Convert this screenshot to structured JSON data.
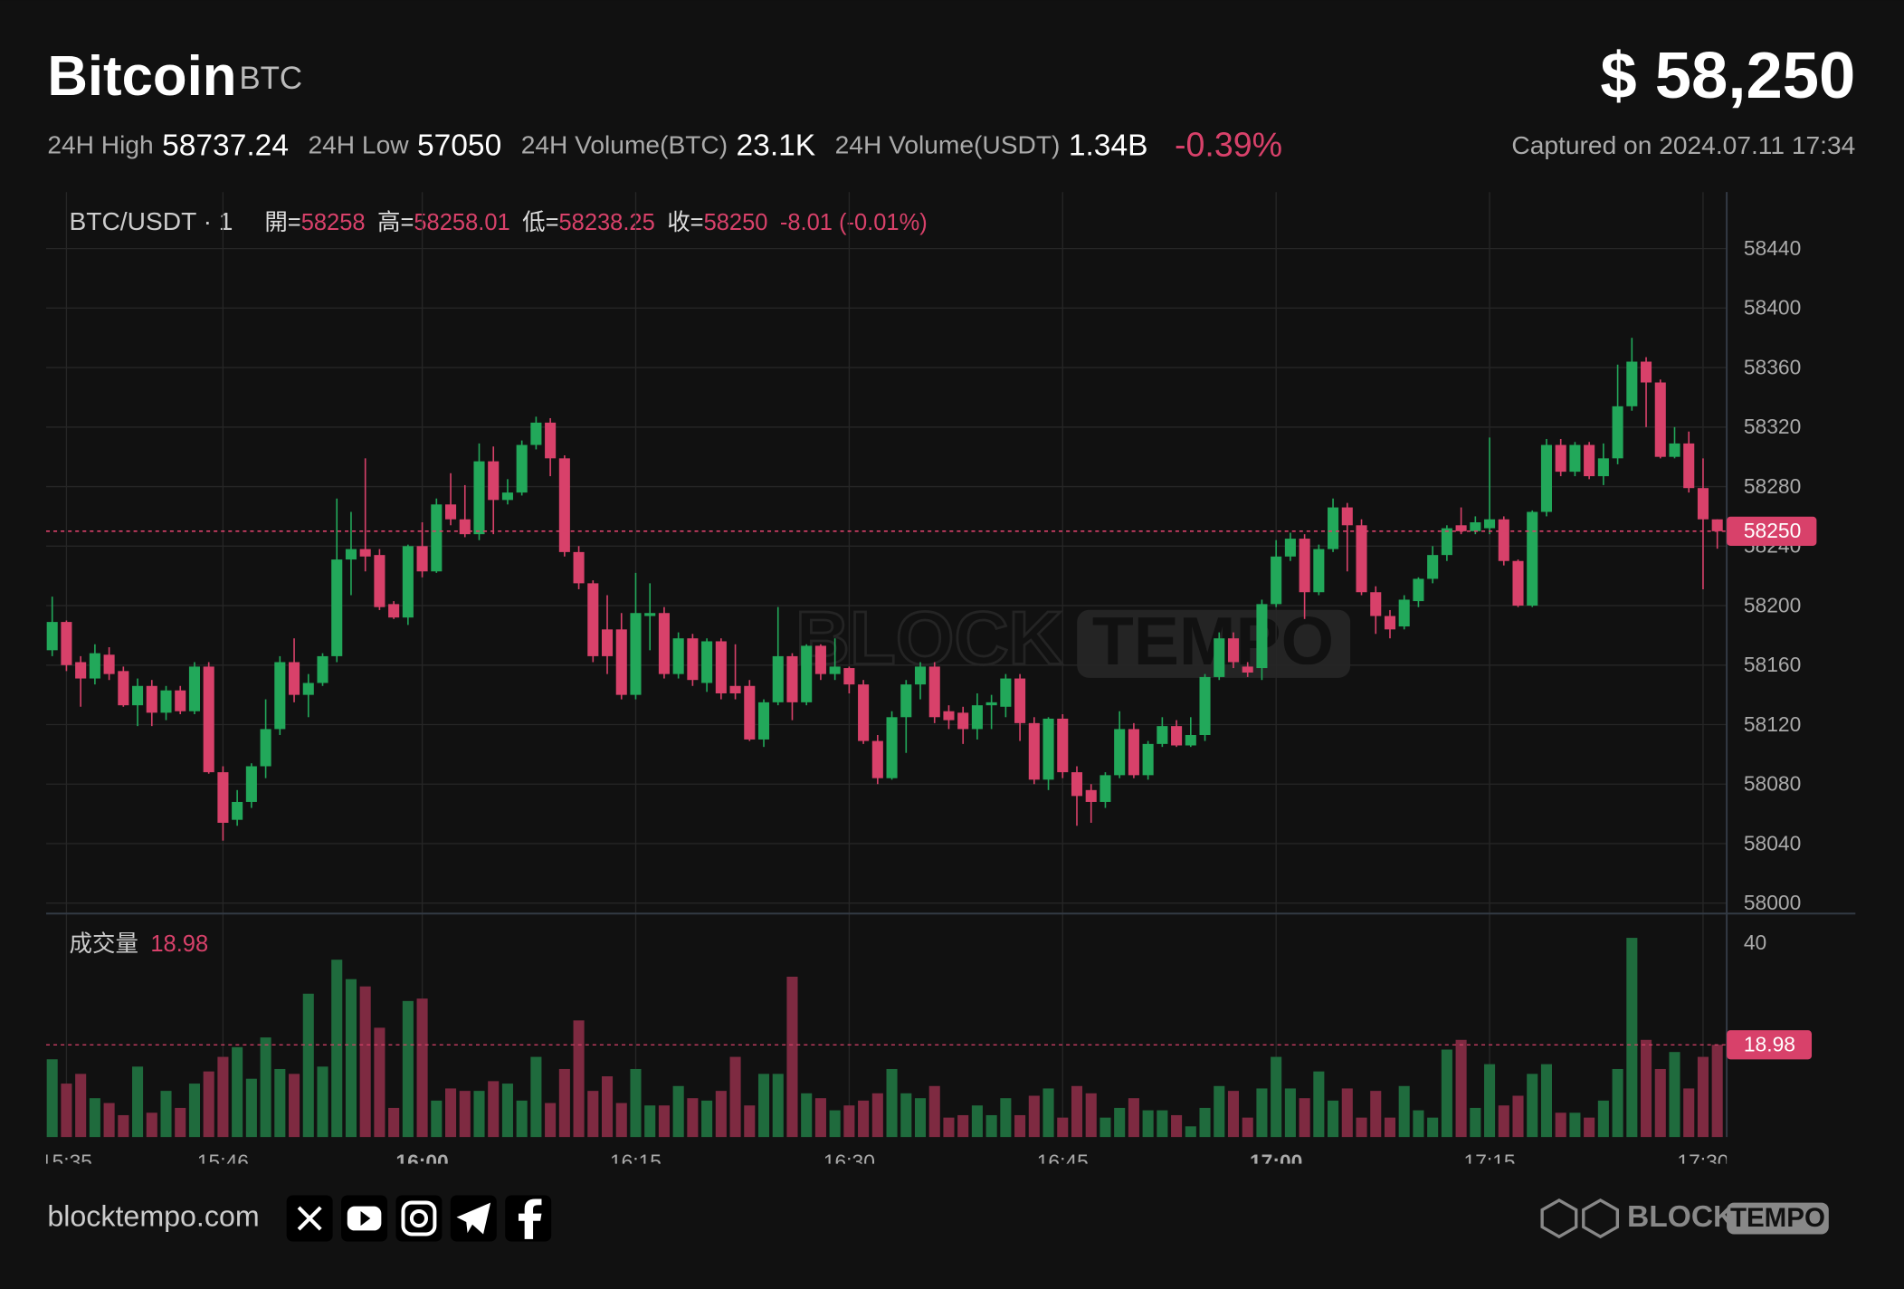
{
  "header": {
    "title": "Bitcoin",
    "symbol": "BTC",
    "price": "$ 58,250",
    "stats": [
      {
        "label": "24H High",
        "value": "58737.24"
      },
      {
        "label": "24H Low",
        "value": "57050"
      },
      {
        "label": "24H Volume(BTC)",
        "value": "23.1K"
      },
      {
        "label": "24H Volume(USDT)",
        "value": "1.34B"
      }
    ],
    "change": "-0.39%",
    "captured": "Captured on 2024.07.11 17:34"
  },
  "chart_data": {
    "type": "candlestick",
    "title": "BTC/USDT · 1",
    "legend": {
      "labels": [
        "開=",
        "高=",
        "低=",
        "收="
      ],
      "change": "-8.01 (-0.01%)"
    },
    "categories": [
      null,
      "15:35",
      null,
      null,
      null,
      null,
      null,
      null,
      null,
      null,
      null,
      null,
      "15:46",
      null,
      null,
      null,
      null,
      null,
      null,
      null,
      null,
      null,
      null,
      null,
      null,
      null,
      "16:00",
      null,
      null,
      null,
      null,
      null,
      null,
      null,
      null,
      null,
      null,
      null,
      null,
      null,
      null,
      "16:15",
      null,
      null,
      null,
      null,
      null,
      null,
      null,
      null,
      null,
      null,
      null,
      null,
      null,
      null,
      "16:30",
      null,
      null,
      null,
      null,
      null,
      null,
      null,
      null,
      null,
      null,
      null,
      null,
      null,
      null,
      "16:45",
      null,
      null,
      null,
      null,
      null,
      null,
      null,
      null,
      null,
      null,
      null,
      null,
      null,
      null,
      "17:00",
      null,
      null,
      null,
      null,
      null,
      null,
      null,
      null,
      null,
      null,
      null,
      null,
      null,
      null,
      "17:15",
      null,
      null,
      null,
      null,
      null,
      null,
      null,
      null,
      null,
      null,
      null,
      null,
      null,
      null,
      "17:30",
      null
    ],
    "open": [
      58170,
      58189,
      58162,
      58151,
      58167,
      58156,
      58133,
      58146,
      58128,
      58143,
      58129,
      58159,
      58088,
      58056,
      58068,
      58092,
      58117,
      58162,
      58140,
      58148,
      58166,
      58231,
      58238,
      58234,
      58201,
      58192,
      58240,
      58223,
      58268,
      58258,
      58248,
      58297,
      58271,
      58276,
      58308,
      58323,
      58299,
      58236,
      58215,
      58184,
      58184,
      58140,
      58193,
      58195,
      58154,
      58178,
      58148,
      58176,
      58146,
      58146,
      58110,
      58135,
      58166,
      58135,
      58173,
      58154,
      58158,
      58147,
      58109,
      58084,
      58125,
      58147,
      58159,
      58129,
      58128,
      58117,
      58133,
      58132,
      58151,
      58121,
      58083,
      58124,
      58088,
      58076,
      58068,
      58086,
      58117,
      58086,
      58107,
      58119,
      58106,
      58113,
      58152,
      58178,
      58159,
      58158,
      58201,
      58233,
      58245,
      58209,
      58238,
      58266,
      58254,
      58209,
      58193,
      58186,
      58203,
      58218,
      58234,
      58254,
      58250,
      58252,
      58258,
      58230,
      58200,
      58263,
      58308,
      58290,
      58308,
      58287,
      58299,
      58334,
      58364,
      58350,
      58300,
      58309,
      58279,
      58258
    ],
    "high": [
      58206,
      58190,
      58166,
      58174,
      58172,
      58159,
      58151,
      58150,
      58146,
      58146,
      58162,
      58162,
      58092,
      58076,
      58094,
      58137,
      58166,
      58178,
      58154,
      58168,
      58272,
      58263,
      58299,
      58238,
      58203,
      58241,
      58256,
      58272,
      58289,
      58281,
      58309,
      58307,
      58285,
      58311,
      58327,
      58326,
      58301,
      58240,
      58217,
      58207,
      58195,
      58222,
      58215,
      58199,
      58182,
      58181,
      58178,
      58178,
      58174,
      58150,
      58137,
      58199,
      58168,
      58174,
      58174,
      58178,
      58159,
      58150,
      58113,
      58129,
      58150,
      58162,
      58162,
      58133,
      58132,
      58141,
      58140,
      58154,
      58154,
      58125,
      58125,
      58127,
      58092,
      58080,
      58088,
      58129,
      58121,
      58109,
      58125,
      58123,
      58125,
      58154,
      58182,
      58182,
      58162,
      58204,
      58244,
      58249,
      58248,
      58241,
      58272,
      58269,
      58258,
      58213,
      58197,
      58207,
      58219,
      58240,
      58254,
      58266,
      58260,
      58313,
      58260,
      58231,
      58264,
      58312,
      58312,
      58310,
      58310,
      58309,
      58362,
      58380,
      58367,
      58352,
      58320,
      58317,
      58299,
      58258.01
    ],
    "low": [
      58166,
      58156,
      58132,
      58147,
      58150,
      58132,
      58119,
      58119,
      58123,
      58127,
      58127,
      58087,
      58042,
      58052,
      58064,
      58084,
      58113,
      58135,
      58125,
      58146,
      58162,
      58207,
      58223,
      58197,
      58191,
      58187,
      58219,
      58222,
      58254,
      58246,
      58244,
      58248,
      58268,
      58274,
      58305,
      58287,
      58233,
      58211,
      58162,
      58154,
      58137,
      58137,
      58170,
      58151,
      58151,
      58146,
      58142,
      58137,
      58137,
      58109,
      58105,
      58133,
      58123,
      58133,
      58150,
      58150,
      58141,
      58107,
      58080,
      58083,
      58101,
      58137,
      58121,
      58117,
      58107,
      58110,
      58117,
      58125,
      58109,
      58080,
      58076,
      58084,
      58052,
      58054,
      58064,
      58084,
      58084,
      58083,
      58105,
      58105,
      58105,
      58109,
      58150,
      58158,
      58152,
      58150,
      58199,
      58230,
      58191,
      58207,
      58236,
      58223,
      58207,
      58181,
      58178,
      58184,
      58199,
      58215,
      58230,
      58248,
      58248,
      58248,
      58227,
      58199,
      58199,
      58260,
      58287,
      58287,
      58285,
      58281,
      58295,
      58331,
      58320,
      58299,
      58299,
      58276,
      58211,
      58238.25
    ],
    "close": [
      58189,
      58160,
      58151,
      58168,
      58154,
      58133,
      58146,
      58128,
      58143,
      58129,
      58159,
      58088,
      58054,
      58068,
      58092,
      58117,
      58162,
      58140,
      58148,
      58166,
      58231,
      58238,
      58233,
      58199,
      58192,
      58240,
      58223,
      58268,
      58258,
      58248,
      58297,
      58271,
      58276,
      58308,
      58323,
      58299,
      58236,
      58215,
      58166,
      58166,
      58140,
      58195,
      58195,
      58154,
      58178,
      58150,
      58176,
      58141,
      58141,
      58110,
      58135,
      58166,
      58135,
      58173,
      58154,
      58159,
      58147,
      58109,
      58084,
      58125,
      58147,
      58159,
      58125,
      58123,
      58117,
      58133,
      58135,
      58151,
      58121,
      58083,
      58124,
      58088,
      58072,
      58068,
      58086,
      58117,
      58086,
      58107,
      58119,
      58106,
      58113,
      58152,
      58178,
      58162,
      58155,
      58201,
      58233,
      58245,
      58209,
      58238,
      58266,
      58254,
      58209,
      58193,
      58184,
      58204,
      58218,
      58234,
      58252,
      58250,
      58256,
      58258,
      58230,
      58200,
      58263,
      58308,
      58290,
      58308,
      58287,
      58299,
      58334,
      58364,
      58350,
      58300,
      58309,
      58279,
      58258,
      58250
    ],
    "up_color": "#22a85a",
    "down_color": "#d8416a",
    "up_volume_color": "#1f6b3d",
    "down_volume_color": "#7e2a41",
    "ylim": [
      57993,
      58478
    ],
    "yticks": [
      58000,
      58040,
      58080,
      58120,
      58160,
      58200,
      58240,
      58280,
      58320,
      58360,
      58400,
      58440
    ],
    "grid": true,
    "volume_title": "成交量",
    "volume": [
      16,
      11,
      13,
      8,
      7,
      4.5,
      14.5,
      5,
      9.5,
      6,
      11,
      13.5,
      16.5,
      18.5,
      12,
      20.5,
      14,
      13,
      29.5,
      14.5,
      36.5,
      32.5,
      31,
      22.5,
      6,
      28,
      28.5,
      7.5,
      10,
      9.5,
      9.5,
      11.5,
      11,
      7.5,
      16.5,
      7,
      14,
      24,
      9.5,
      12.5,
      7,
      14,
      6.5,
      6.5,
      10.5,
      8,
      7.5,
      9.5,
      16.5,
      6.5,
      13,
      13,
      33,
      9,
      8,
      5.5,
      6.5,
      7.5,
      9,
      14,
      9,
      8,
      10.5,
      4,
      4.5,
      6.5,
      4.5,
      8,
      4.5,
      8.5,
      10,
      4,
      10.5,
      9,
      4,
      6,
      8,
      5.5,
      5.5,
      4.5,
      2.2,
      6,
      10.5,
      9.5,
      4,
      10,
      16.5,
      10,
      8,
      13.5,
      7.5,
      10,
      4,
      9.5,
      4,
      10.5,
      5.5,
      4,
      18,
      20,
      6,
      15,
      6.5,
      8.5,
      13,
      15,
      5,
      5,
      4,
      7.5,
      14,
      41,
      20,
      14,
      17.5,
      10,
      16.5,
      18.98
    ],
    "volume_ylim": [
      0,
      46
    ],
    "volume_yticks": [
      40
    ]
  },
  "footer": {
    "site": "blocktempo.com",
    "logo": [
      "BLOCK",
      "TEMPO"
    ]
  }
}
